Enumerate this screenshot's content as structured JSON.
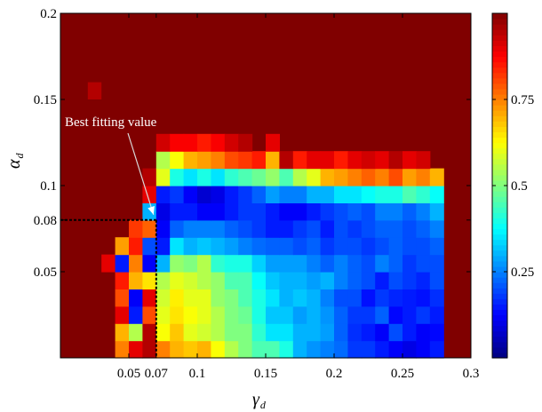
{
  "chart_data": {
    "type": "heatmap",
    "title": "",
    "xlabel": "γ",
    "xlabel_sub": "d",
    "ylabel": "α",
    "ylabel_sub": "d",
    "xlim": [
      0,
      0.3
    ],
    "ylim": [
      0,
      0.2
    ],
    "x_ticks": [
      {
        "value": 0.05,
        "label": "0.05"
      },
      {
        "value": 0.07,
        "label": "0.07"
      },
      {
        "value": 0.1,
        "label": "0.1"
      },
      {
        "value": 0.15,
        "label": "0.15"
      },
      {
        "value": 0.2,
        "label": "0.2"
      },
      {
        "value": 0.25,
        "label": "0.25"
      },
      {
        "value": 0.3,
        "label": "0.3"
      }
    ],
    "y_ticks": [
      {
        "value": 0.05,
        "label": "0.05"
      },
      {
        "value": 0.08,
        "label": "0.08"
      },
      {
        "value": 0.1,
        "label": "0.1"
      },
      {
        "value": 0.15,
        "label": "0.15"
      },
      {
        "value": 0.2,
        "label": "0.2"
      }
    ],
    "colorbar": {
      "colormap": "jet",
      "range": [
        0,
        1
      ],
      "ticks": [
        {
          "value": 0.25,
          "label": "0.25"
        },
        {
          "value": 0.5,
          "label": "0.5"
        },
        {
          "value": 0.75,
          "label": "0.75"
        }
      ]
    },
    "grid": false,
    "background_value": 1.0,
    "cell_width": 0.01,
    "cell_height": 0.01,
    "x_centers": [
      0.035,
      0.045,
      0.055,
      0.065,
      0.075,
      0.085,
      0.095,
      0.105,
      0.115,
      0.125,
      0.135,
      0.145,
      0.155,
      0.165,
      0.175,
      0.185,
      0.195,
      0.205,
      0.215,
      0.225,
      0.235,
      0.245,
      0.255,
      0.265,
      0.275
    ],
    "y_centers": [
      0.005,
      0.015,
      0.025,
      0.035,
      0.045,
      0.055,
      0.065,
      0.075,
      0.085,
      0.095,
      0.105,
      0.115,
      0.125
    ],
    "z": [
      [
        1.0,
        0.75,
        0.9,
        0.95,
        0.75,
        0.7,
        0.68,
        0.7,
        0.62,
        0.55,
        0.5,
        0.45,
        0.45,
        0.4,
        0.3,
        0.27,
        0.25,
        0.23,
        0.18,
        0.18,
        0.15,
        0.12,
        0.1,
        0.12,
        0.15
      ],
      [
        1.0,
        0.7,
        0.55,
        0.95,
        0.62,
        0.68,
        0.6,
        0.58,
        0.55,
        0.5,
        0.5,
        0.42,
        0.35,
        0.35,
        0.3,
        0.3,
        0.28,
        0.22,
        0.17,
        0.15,
        0.12,
        0.2,
        0.15,
        0.12,
        0.13
      ],
      [
        1.0,
        0.9,
        0.15,
        0.8,
        0.6,
        0.65,
        0.62,
        0.6,
        0.55,
        0.5,
        0.48,
        0.4,
        0.32,
        0.32,
        0.28,
        0.3,
        0.27,
        0.22,
        0.18,
        0.18,
        0.22,
        0.13,
        0.15,
        0.18,
        0.15
      ],
      [
        1.0,
        0.8,
        0.12,
        0.9,
        0.58,
        0.64,
        0.6,
        0.6,
        0.52,
        0.5,
        0.45,
        0.4,
        0.35,
        0.3,
        0.32,
        0.3,
        0.25,
        0.2,
        0.2,
        0.14,
        0.18,
        0.16,
        0.15,
        0.14,
        0.17
      ],
      [
        1.0,
        0.85,
        0.7,
        0.65,
        0.55,
        0.6,
        0.58,
        0.55,
        0.52,
        0.45,
        0.45,
        0.38,
        0.32,
        0.3,
        0.3,
        0.28,
        0.3,
        0.25,
        0.22,
        0.2,
        0.15,
        0.2,
        0.18,
        0.16,
        0.2
      ],
      [
        0.9,
        0.15,
        0.75,
        0.12,
        0.3,
        0.52,
        0.5,
        0.55,
        0.42,
        0.4,
        0.4,
        0.33,
        0.28,
        0.28,
        0.28,
        0.25,
        0.22,
        0.25,
        0.22,
        0.2,
        0.25,
        0.22,
        0.18,
        0.2,
        0.2
      ],
      [
        1.0,
        0.72,
        0.85,
        0.2,
        0.15,
        0.35,
        0.3,
        0.32,
        0.3,
        0.28,
        0.25,
        0.23,
        0.22,
        0.22,
        0.2,
        0.22,
        0.18,
        0.2,
        0.2,
        0.18,
        0.2,
        0.22,
        0.2,
        0.2,
        0.22
      ],
      [
        1.0,
        1.0,
        0.82,
        0.78,
        0.12,
        0.22,
        0.25,
        0.25,
        0.25,
        0.22,
        0.2,
        0.18,
        0.15,
        0.15,
        0.18,
        0.2,
        0.15,
        0.2,
        0.18,
        0.2,
        0.22,
        0.22,
        0.2,
        0.22,
        0.25
      ],
      [
        1.0,
        1.0,
        1.0,
        0.3,
        0.1,
        0.15,
        0.15,
        0.12,
        0.12,
        0.15,
        0.18,
        0.18,
        0.15,
        0.12,
        0.12,
        0.15,
        0.18,
        0.2,
        0.22,
        0.2,
        0.25,
        0.25,
        0.22,
        0.25,
        0.3
      ],
      [
        1.0,
        1.0,
        1.0,
        0.9,
        0.15,
        0.18,
        0.12,
        0.08,
        0.1,
        0.15,
        0.18,
        0.22,
        0.28,
        0.25,
        0.25,
        0.3,
        0.3,
        0.35,
        0.35,
        0.38,
        0.4,
        0.4,
        0.45,
        0.42,
        0.38
      ],
      [
        1.0,
        1.0,
        1.0,
        0.95,
        0.6,
        0.4,
        0.35,
        0.4,
        0.35,
        0.42,
        0.45,
        0.48,
        0.52,
        0.45,
        0.55,
        0.6,
        0.7,
        0.72,
        0.75,
        0.78,
        0.75,
        0.8,
        0.72,
        0.75,
        0.7
      ],
      [
        1.0,
        1.0,
        1.0,
        1.0,
        0.55,
        0.62,
        0.7,
        0.72,
        0.75,
        0.8,
        0.82,
        0.85,
        0.7,
        0.95,
        0.85,
        0.9,
        0.9,
        0.85,
        0.9,
        0.92,
        0.9,
        0.95,
        0.9,
        0.92,
        1.0
      ],
      [
        1.0,
        1.0,
        1.0,
        1.0,
        0.92,
        0.88,
        0.88,
        0.85,
        0.88,
        0.92,
        0.95,
        1.0,
        0.9,
        1.0,
        1.0,
        1.0,
        1.0,
        1.0,
        1.0,
        1.0,
        1.0,
        1.0,
        1.0,
        1.0,
        1.0
      ]
    ],
    "extra_cells": [
      {
        "x": 0.025,
        "y": 0.155,
        "value": 0.95
      }
    ],
    "annotation": {
      "text": "Best fitting value",
      "point": {
        "x": 0.07,
        "y": 0.08
      }
    }
  }
}
